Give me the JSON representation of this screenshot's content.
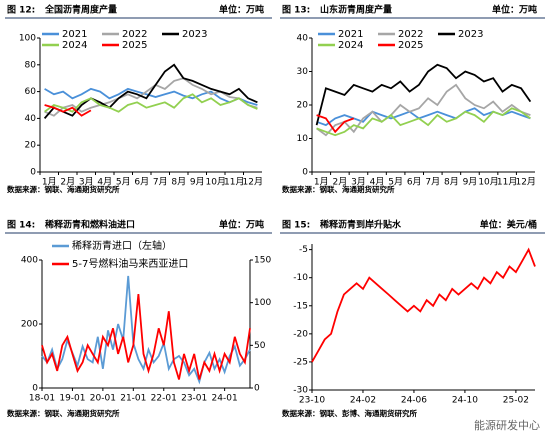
{
  "chart_data": [
    {
      "type": "line",
      "figure": "图 12:",
      "title": "全国沥青周度产量",
      "unit": "单位：万吨",
      "source": "数据来源：钢联、海通期货研究所",
      "categories": [
        "1月",
        null,
        "2月",
        null,
        "3月",
        null,
        "4月",
        null,
        "5月",
        null,
        "6月",
        null,
        "7月",
        null,
        "8月",
        null,
        "9月",
        null,
        "10月",
        null,
        "11月",
        null,
        "12月",
        null
      ],
      "ylim": [
        0,
        100
      ],
      "yticks": [
        0,
        20,
        40,
        60,
        80,
        100
      ],
      "series": [
        {
          "name": "2021",
          "color": "#4a90d9",
          "values": [
            62,
            58,
            60,
            55,
            58,
            62,
            60,
            55,
            58,
            62,
            60,
            58,
            56,
            58,
            60,
            57,
            55,
            58,
            60,
            55,
            52,
            55,
            52,
            50
          ]
        },
        {
          "name": "2022",
          "color": "#a6a6a6",
          "values": [
            45,
            42,
            48,
            50,
            45,
            48,
            50,
            52,
            55,
            58,
            55,
            60,
            65,
            62,
            68,
            70,
            65,
            62,
            58,
            60,
            56,
            55,
            50,
            48
          ]
        },
        {
          "name": "2023",
          "color": "#000000",
          "values": [
            40,
            48,
            45,
            42,
            50,
            55,
            52,
            48,
            55,
            60,
            58,
            55,
            65,
            75,
            80,
            70,
            68,
            65,
            62,
            60,
            58,
            62,
            55,
            52
          ]
        },
        {
          "name": "2024",
          "color": "#92d050",
          "values": [
            45,
            50,
            48,
            45,
            52,
            55,
            50,
            48,
            45,
            50,
            52,
            48,
            50,
            52,
            48,
            55,
            58,
            52,
            55,
            50,
            52,
            55,
            50,
            47
          ]
        },
        {
          "name": "2025",
          "color": "#ff0000",
          "values": [
            50,
            48,
            45,
            48,
            42,
            46,
            null,
            null,
            null,
            null,
            null,
            null,
            null,
            null,
            null,
            null,
            null,
            null,
            null,
            null,
            null,
            null,
            null,
            null
          ]
        }
      ]
    },
    {
      "type": "line",
      "figure": "图 13:",
      "title": "山东沥青周度产量",
      "unit": "单位：万吨",
      "source": "数据来源：钢联、海通期货研究所",
      "categories": [
        "1月",
        null,
        "2月",
        null,
        "3月",
        null,
        "4月",
        null,
        "5月",
        null,
        "6月",
        null,
        "7月",
        null,
        "8月",
        null,
        "9月",
        null,
        "10月",
        null,
        "11月",
        null,
        "12月",
        null
      ],
      "ylim": [
        0,
        40
      ],
      "yticks": [
        0,
        10,
        20,
        30,
        40
      ],
      "series": [
        {
          "name": "2021",
          "color": "#4a90d9",
          "values": [
            15,
            14,
            16,
            17,
            16,
            15,
            18,
            17,
            16,
            17,
            18,
            16,
            17,
            18,
            17,
            16,
            18,
            19,
            17,
            18,
            17,
            18,
            17,
            16
          ]
        },
        {
          "name": "2022",
          "color": "#a6a6a6",
          "values": [
            13,
            11,
            14,
            15,
            12,
            16,
            18,
            15,
            17,
            20,
            18,
            19,
            22,
            20,
            24,
            26,
            22,
            20,
            19,
            21,
            18,
            20,
            18,
            17
          ]
        },
        {
          "name": "2023",
          "color": "#000000",
          "values": [
            14,
            25,
            24,
            23,
            26,
            25,
            24,
            26,
            25,
            27,
            24,
            26,
            30,
            32,
            31,
            28,
            30,
            29,
            27,
            28,
            24,
            26,
            25,
            21
          ]
        },
        {
          "name": "2024",
          "color": "#92d050",
          "values": [
            13,
            12,
            11,
            12,
            14,
            13,
            16,
            15,
            17,
            14,
            15,
            16,
            14,
            17,
            15,
            16,
            18,
            17,
            15,
            18,
            17,
            19,
            18,
            16
          ]
        },
        {
          "name": "2025",
          "color": "#ff0000",
          "values": [
            17,
            16,
            12,
            15,
            16,
            null,
            null,
            null,
            null,
            null,
            null,
            null,
            null,
            null,
            null,
            null,
            null,
            null,
            null,
            null,
            null,
            null,
            null,
            null
          ]
        }
      ]
    },
    {
      "type": "line",
      "figure": "图 14:",
      "title": "稀释沥青和燃料油进口",
      "unit": "单位：万吨",
      "source": "数据来源：钢联、海通期货研究所",
      "categories": [
        "18-01",
        null,
        null,
        null,
        null,
        null,
        "19-01",
        null,
        null,
        null,
        null,
        null,
        "20-01",
        null,
        null,
        null,
        null,
        null,
        "21-01",
        null,
        null,
        null,
        null,
        null,
        "22-01",
        null,
        null,
        null,
        null,
        null,
        "23-01",
        null,
        null,
        null,
        null,
        null,
        "24-01",
        null,
        null,
        null,
        null,
        null
      ],
      "ylim": [
        0,
        400
      ],
      "yticks": [
        0,
        200,
        400
      ],
      "y2lim": [
        0,
        150
      ],
      "y2ticks": [
        0,
        50,
        100,
        150
      ],
      "series": [
        {
          "name": "稀释沥青进口（左轴）",
          "color": "#5b9bd5",
          "values": [
            100,
            80,
            120,
            60,
            90,
            150,
            110,
            70,
            130,
            90,
            80,
            160,
            60,
            180,
            120,
            200,
            150,
            350,
            140,
            90,
            60,
            120,
            80,
            100,
            140,
            60,
            90,
            100,
            80,
            40,
            60,
            20,
            80,
            110,
            60,
            90,
            50,
            100,
            130,
            70,
            90,
            120
          ]
        },
        {
          "name": "5-7号燃料油马来西亚进口",
          "color": "#ff0000",
          "axis": "y2",
          "values": [
            50,
            30,
            40,
            20,
            50,
            60,
            40,
            20,
            30,
            50,
            40,
            30,
            60,
            50,
            70,
            40,
            60,
            30,
            50,
            110,
            40,
            20,
            40,
            70,
            50,
            90,
            30,
            10,
            40,
            20,
            40,
            10,
            30,
            20,
            40,
            20,
            40,
            30,
            60,
            40,
            30,
            70
          ]
        }
      ]
    },
    {
      "type": "line",
      "figure": "图 15:",
      "title": "稀释沥青到岸升贴水",
      "unit": "单位：美元/桶",
      "source": "数据来源：钢联、彭博、海通期货研究所",
      "categories": [
        "23-10",
        null,
        null,
        null,
        null,
        null,
        null,
        null,
        "24-02",
        null,
        null,
        null,
        null,
        null,
        null,
        null,
        "24-06",
        null,
        null,
        null,
        null,
        null,
        null,
        null,
        "24-10",
        null,
        null,
        null,
        null,
        null,
        null,
        null,
        "25-02",
        null,
        null,
        null
      ],
      "ylim": [
        -30,
        -4
      ],
      "yticks": [
        -30,
        -25,
        -20,
        -15,
        -10,
        -5
      ],
      "series": [
        {
          "color": "#ff0000",
          "values": [
            -25,
            -23,
            -21,
            -20,
            -16,
            -13,
            -12,
            -11,
            -12,
            -10,
            -11,
            -12,
            -13,
            -14,
            -15,
            -16,
            -15,
            -16,
            -14,
            -15,
            -13,
            -14,
            -12,
            -13,
            -12,
            -11,
            -12,
            -10,
            -11,
            -9,
            -10,
            -8,
            -9,
            -7,
            -5,
            -8
          ]
        }
      ]
    }
  ],
  "watermark": "能源研发中心"
}
